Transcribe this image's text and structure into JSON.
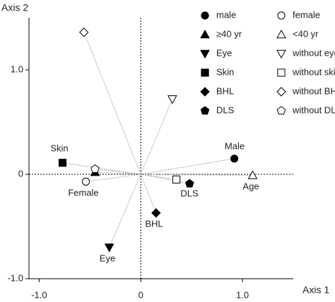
{
  "chart_data": {
    "type": "scatter",
    "xlabel": "Axis 1",
    "ylabel": "Axis 2",
    "xlim": [
      -1.1,
      1.5
    ],
    "ylim": [
      -1.0,
      1.5
    ],
    "xticks": [
      {
        "value": -1,
        "label": "-1.0"
      },
      0,
      {
        "value": 1,
        "label": "1.0"
      }
    ],
    "yticks": [
      {
        "value": -1,
        "label": "-1.0"
      },
      0,
      {
        "value": 1,
        "label": "1.0"
      }
    ],
    "legend": "upper right",
    "series": [
      {
        "name": "male",
        "marker": "circle",
        "filled": true,
        "color": "#000000",
        "x": [
          0.92
        ],
        "y": [
          0.15
        ]
      },
      {
        "name": "female",
        "marker": "circle",
        "filled": false,
        "color": "#000000",
        "x": [
          -0.54
        ],
        "y": [
          -0.07
        ]
      },
      {
        "name": "≥40 yr",
        "marker": "triangle-up",
        "filled": true,
        "color": "#000000",
        "x": [
          -0.45
        ],
        "y": [
          0.02
        ]
      },
      {
        "name": "<40 yr",
        "marker": "triangle-up",
        "filled": false,
        "color": "#000000",
        "x": [
          1.1
        ],
        "y": [
          -0.01
        ]
      },
      {
        "name": "Eye",
        "marker": "triangle-down",
        "filled": true,
        "color": "#000000",
        "x": [
          -0.31
        ],
        "y": [
          -0.7
        ]
      },
      {
        "name": "without eye",
        "marker": "triangle-down",
        "filled": false,
        "color": "#000000",
        "x": [
          0.31
        ],
        "y": [
          0.72
        ]
      },
      {
        "name": "Skin",
        "marker": "square",
        "filled": true,
        "color": "#000000",
        "x": [
          -0.77
        ],
        "y": [
          0.11
        ]
      },
      {
        "name": "without skin",
        "marker": "square",
        "filled": false,
        "color": "#000000",
        "x": [
          0.35
        ],
        "y": [
          -0.05
        ]
      },
      {
        "name": "BHL",
        "marker": "diamond",
        "filled": true,
        "color": "#000000",
        "x": [
          0.15
        ],
        "y": [
          -0.37
        ]
      },
      {
        "name": "without BHL",
        "marker": "diamond",
        "filled": false,
        "color": "#000000",
        "x": [
          -0.56
        ],
        "y": [
          1.36
        ]
      },
      {
        "name": "DLS",
        "marker": "pentagon",
        "filled": true,
        "color": "#000000",
        "x": [
          0.48
        ],
        "y": [
          -0.09
        ]
      },
      {
        "name": "without DLS",
        "marker": "pentagon",
        "filled": false,
        "color": "#000000",
        "x": [
          -0.45
        ],
        "y": [
          0.05
        ]
      }
    ],
    "annotations": [
      "Male",
      "Female",
      "Skin",
      "Age",
      "DLS",
      "BHL",
      "Eye"
    ]
  }
}
